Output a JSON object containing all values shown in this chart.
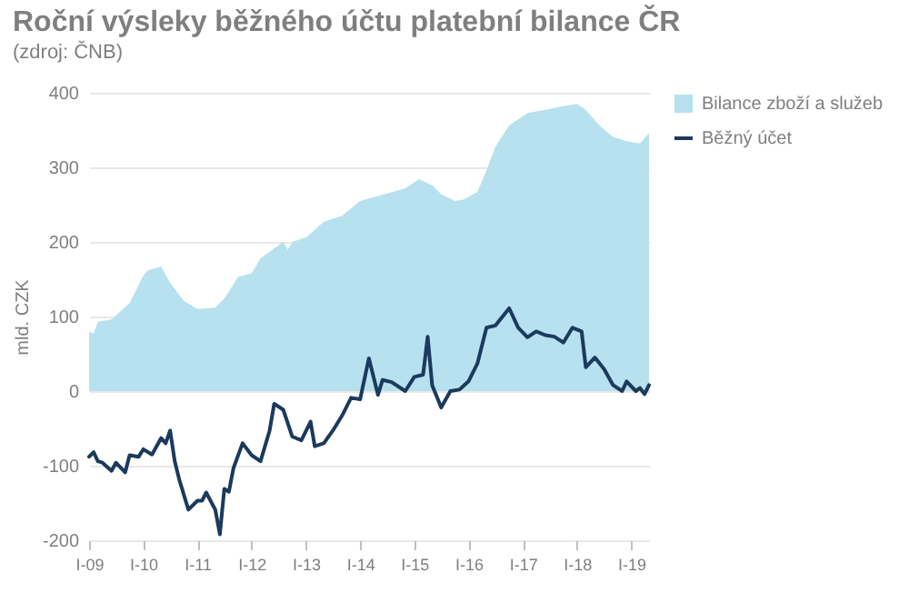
{
  "chart_data": {
    "type": "line",
    "title": "Roční výsleky běžného účtu platební bilance ČR",
    "subtitle": "(zdroj: ČNB)",
    "ylabel": "mld. CZK",
    "xlim": [
      "2009-01",
      "2019-05"
    ],
    "xticks": [
      {
        "value": "2009-01",
        "label": "I-09"
      },
      {
        "value": "2010-01",
        "label": "I-10"
      },
      {
        "value": "2011-01",
        "label": "I-11"
      },
      {
        "value": "2012-01",
        "label": "I-12"
      },
      {
        "value": "2013-01",
        "label": "I-13"
      },
      {
        "value": "2014-01",
        "label": "I-14"
      },
      {
        "value": "2015-01",
        "label": "I-15"
      },
      {
        "value": "2016-01",
        "label": "I-16"
      },
      {
        "value": "2017-01",
        "label": "I-17"
      },
      {
        "value": "2018-01",
        "label": "I-18"
      },
      {
        "value": "2019-01",
        "label": "I-19"
      }
    ],
    "ylim": [
      -200,
      400
    ],
    "yticks": [
      -200,
      -100,
      0,
      100,
      200,
      300,
      400
    ],
    "grid": "y",
    "legend": "right",
    "series": [
      {
        "name": "Bilance zboží a služeb",
        "type": "area",
        "color": "#b7e1ee",
        "x": [
          "2009-01",
          "2009-02",
          "2009-03",
          "2009-06",
          "2009-10",
          "2010-01",
          "2010-02",
          "2010-05",
          "2010-07",
          "2010-10",
          "2011-01",
          "2011-05",
          "2011-07",
          "2011-10",
          "2012-01",
          "2012-03",
          "2012-08",
          "2012-09",
          "2012-10",
          "2013-01",
          "2013-05",
          "2013-09",
          "2014-01",
          "2014-07",
          "2014-11",
          "2015-02",
          "2015-05",
          "2015-07",
          "2015-10",
          "2015-12",
          "2016-03",
          "2016-05",
          "2016-07",
          "2016-10",
          "2017-02",
          "2017-06",
          "2017-09",
          "2018-01",
          "2018-03",
          "2018-06",
          "2018-09",
          "2018-12",
          "2019-03",
          "2019-05"
        ],
        "values": [
          80,
          77,
          93,
          96,
          118,
          155,
          162,
          167,
          145,
          121,
          110,
          112,
          124,
          153,
          158,
          178,
          200,
          190,
          200,
          206,
          227,
          235,
          255,
          265,
          272,
          284,
          276,
          264,
          255,
          257,
          267,
          296,
          328,
          356,
          373,
          377,
          381,
          385,
          377,
          356,
          341,
          335,
          332,
          346
        ]
      },
      {
        "name": "Běžný účet",
        "type": "line",
        "color": "#1b3a5c",
        "x": [
          "2009-01",
          "2009-02",
          "2009-03",
          "2009-04",
          "2009-06",
          "2009-07",
          "2009-09",
          "2009-10",
          "2009-12",
          "2010-01",
          "2010-03",
          "2010-05",
          "2010-06",
          "2010-07",
          "2010-08",
          "2010-09",
          "2010-11",
          "2011-01",
          "2011-02",
          "2011-03",
          "2011-05",
          "2011-06",
          "2011-07",
          "2011-08",
          "2011-09",
          "2011-11",
          "2012-01",
          "2012-03",
          "2012-05",
          "2012-06",
          "2012-08",
          "2012-10",
          "2012-12",
          "2013-02",
          "2013-03",
          "2013-05",
          "2013-07",
          "2013-09",
          "2013-11",
          "2014-01",
          "2014-03",
          "2014-05",
          "2014-06",
          "2014-08",
          "2014-11",
          "2015-01",
          "2015-03",
          "2015-04",
          "2015-05",
          "2015-07",
          "2015-09",
          "2015-11",
          "2016-01",
          "2016-03",
          "2016-05",
          "2016-07",
          "2016-10",
          "2016-12",
          "2017-02",
          "2017-04",
          "2017-06",
          "2017-08",
          "2017-10",
          "2017-12",
          "2018-02",
          "2018-03",
          "2018-05",
          "2018-07",
          "2018-09",
          "2018-11",
          "2018-12",
          "2019-02",
          "2019-03",
          "2019-04",
          "2019-05"
        ],
        "values": [
          -88,
          -82,
          -94,
          -96,
          -107,
          -96,
          -109,
          -86,
          -88,
          -78,
          -85,
          -63,
          -70,
          -53,
          -94,
          -119,
          -159,
          -147,
          -147,
          -136,
          -159,
          -192,
          -131,
          -135,
          -103,
          -70,
          -86,
          -94,
          -53,
          -17,
          -25,
          -61,
          -66,
          -41,
          -74,
          -70,
          -53,
          -33,
          -9,
          -11,
          44,
          -5,
          15,
          12,
          0,
          19,
          22,
          73,
          8,
          -22,
          0,
          2,
          13,
          37,
          85,
          88,
          111,
          85,
          72,
          80,
          75,
          73,
          65,
          85,
          80,
          32,
          45,
          30,
          8,
          0,
          13,
          0,
          4,
          -4,
          8
        ]
      }
    ]
  }
}
